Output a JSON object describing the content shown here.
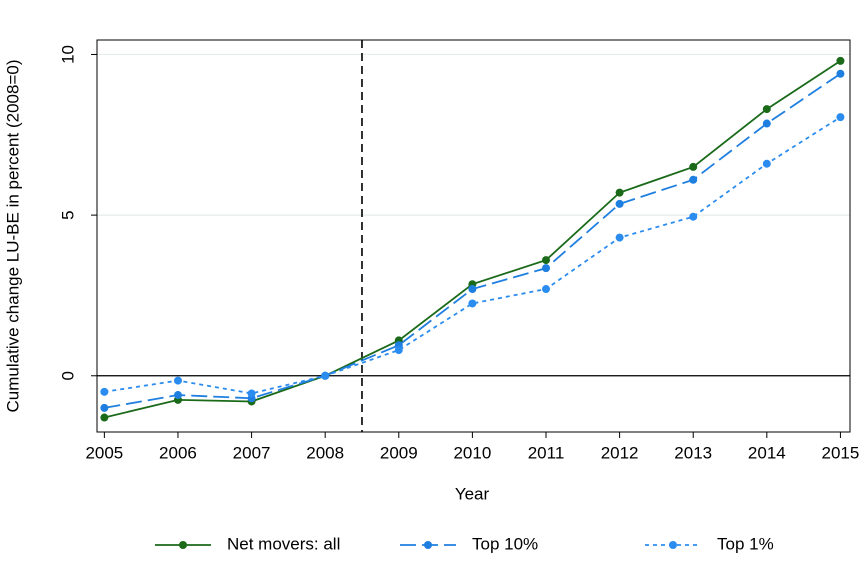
{
  "chart_data": {
    "type": "line",
    "x_label": "Year",
    "y_label": "Cumulative change LU-BE in percent (2008=0)",
    "x": [
      2005,
      2006,
      2007,
      2008,
      2009,
      2010,
      2011,
      2012,
      2013,
      2014,
      2015
    ],
    "series": [
      {
        "name": "Net movers: all",
        "color": "#1a6a1a",
        "dash": "solid",
        "values": [
          -1.3,
          -0.75,
          -0.8,
          0,
          1.1,
          2.85,
          3.6,
          5.7,
          6.5,
          8.3,
          9.8
        ]
      },
      {
        "name": "Top 10%",
        "color": "#1f7fe0",
        "dash": "longdash",
        "values": [
          -1.0,
          -0.6,
          -0.7,
          0,
          0.95,
          2.7,
          3.35,
          5.35,
          6.1,
          7.85,
          9.4
        ]
      },
      {
        "name": "Top 1%",
        "color": "#2b8cf0",
        "dash": "dot",
        "values": [
          -0.5,
          -0.15,
          -0.55,
          0,
          0.8,
          2.25,
          2.7,
          4.3,
          4.95,
          6.6,
          8.05
        ]
      }
    ],
    "xlim": [
      2004.9,
      2015.13
    ],
    "ylim": [
      -1.75,
      10.45
    ],
    "xticks": [
      2005,
      2006,
      2007,
      2008,
      2009,
      2010,
      2011,
      2012,
      2013,
      2014,
      2015
    ],
    "yticks": [
      0,
      5,
      10
    ],
    "grid": true,
    "vline": 2008.5,
    "hline": 0,
    "legend": "bottom"
  }
}
